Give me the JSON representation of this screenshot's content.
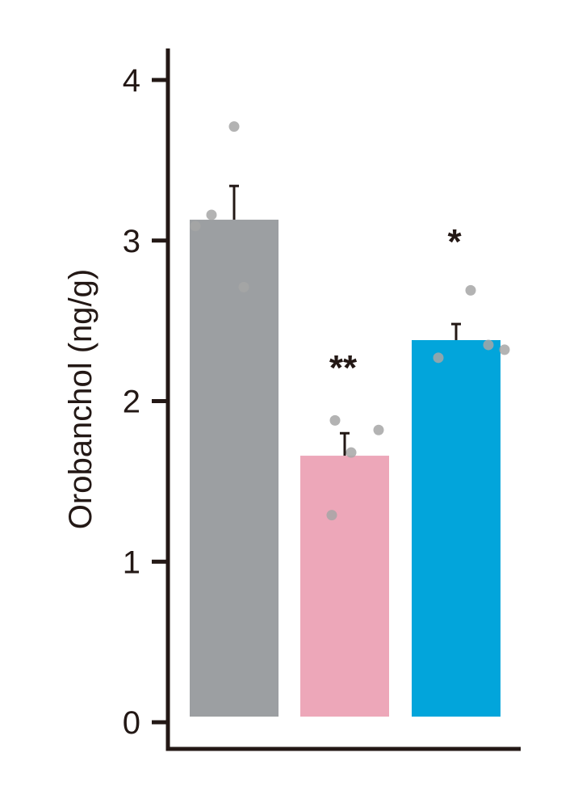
{
  "chart_data": {
    "type": "bar",
    "categories": [
      "",
      "",
      ""
    ],
    "values": [
      3.13,
      1.66,
      2.38
    ],
    "errors": [
      0.21,
      0.14,
      0.1
    ],
    "points": [
      [
        3.71,
        3.16,
        3.09,
        2.71
      ],
      [
        1.88,
        1.82,
        1.68,
        1.29
      ],
      [
        2.69,
        2.35,
        2.32,
        2.27
      ]
    ],
    "significance": [
      "",
      "**",
      "*"
    ],
    "colors": [
      "#9c9fa2",
      "#eda7b9",
      "#02a5db"
    ],
    "point_color": "#a6a6a6",
    "axis_color": "#231815",
    "ylabel": "Orobanchol (ng/g)",
    "xlabel": "",
    "title": "",
    "ylim": [
      0,
      4
    ],
    "yticks": [
      "0",
      "1",
      "2",
      "3",
      "4"
    ],
    "grid": false,
    "legend": "none"
  }
}
